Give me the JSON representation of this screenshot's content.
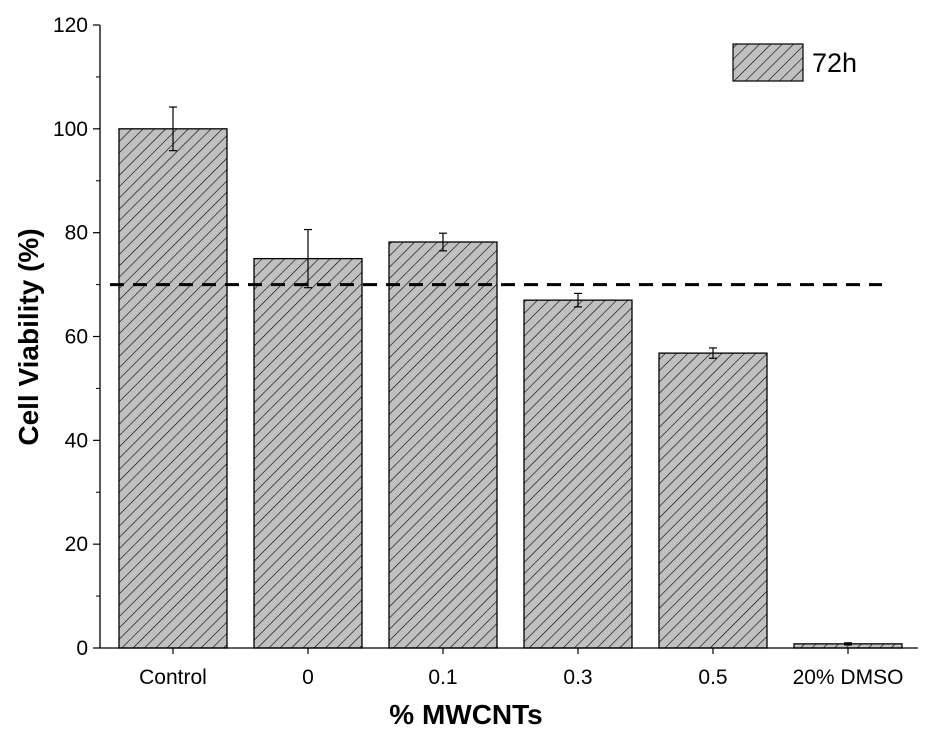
{
  "chart_data": {
    "type": "bar",
    "categories": [
      "Control",
      "0",
      "0.1",
      "0.3",
      "0.5",
      "20% DMSO"
    ],
    "series": [
      {
        "name": "72h",
        "values": [
          100,
          75,
          78.2,
          67,
          56.8,
          0.8
        ],
        "errors": [
          4.2,
          5.6,
          1.7,
          1.3,
          1.0,
          0.2
        ]
      }
    ],
    "xlabel": "% MWCNTs",
    "ylabel": "Cell Viability (%)",
    "ylim": [
      0,
      120
    ],
    "yticks": [
      0,
      20,
      40,
      60,
      80,
      100,
      120
    ],
    "threshold_line": {
      "value": 70,
      "style": "dashed"
    },
    "legend_position": "top-right",
    "bar_fill": "#c0c0c0",
    "hatch_color": "#000000",
    "grid": false
  }
}
